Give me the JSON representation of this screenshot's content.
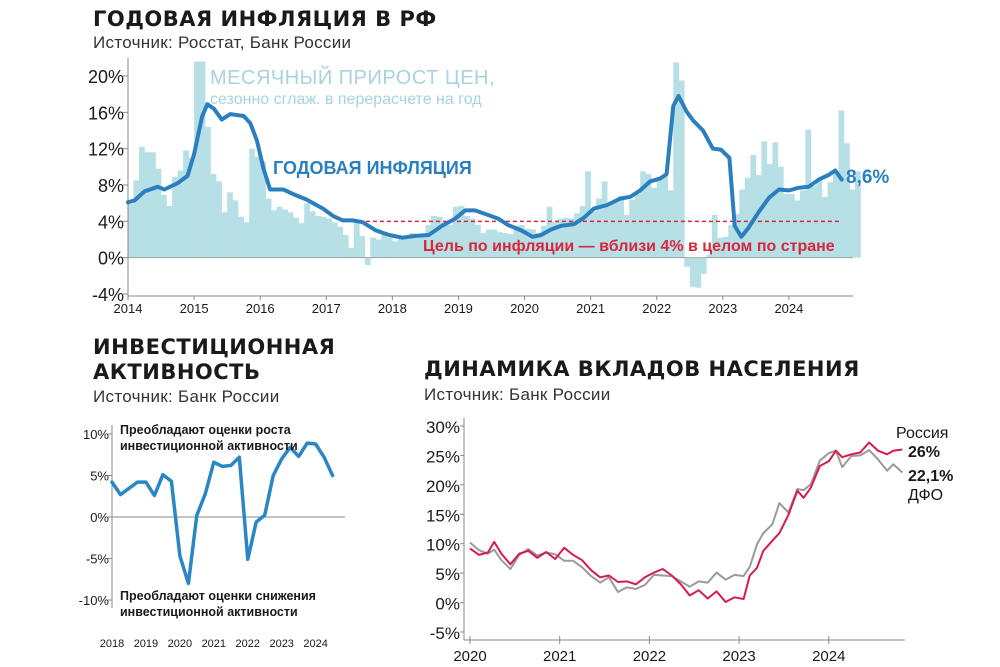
{
  "colors": {
    "bars": "#b7dfe6",
    "bars_label": "#a6d3dc",
    "inflation_line": "#2b7fbf",
    "target": "#d8263b",
    "grid": "#aaaaaa",
    "russia": "#d81b4a",
    "dfo": "#9a9a9a",
    "invest": "#2b86c5"
  },
  "chart_data": [
    {
      "type": "bar+line",
      "title": "ГОДОВАЯ ИНФЛЯЦИЯ В РФ",
      "subtitle": "Источник: Росстат, Банк России",
      "ylim": [
        -4,
        22
      ],
      "yticks": [
        "-4%",
        "0%",
        "4%",
        "8%",
        "12%",
        "16%",
        "20%"
      ],
      "ytick_values": [
        -4,
        0,
        4,
        8,
        12,
        16,
        20
      ],
      "xticks": [
        "2014",
        "2015",
        "2016",
        "2017",
        "2018",
        "2019",
        "2020",
        "2021",
        "2022",
        "2023",
        "2024"
      ],
      "xlim": [
        2014.0,
        2024.95
      ],
      "bar_series_label": "МЕСЯЧНЫЙ ПРИРОСТ ЦЕН,",
      "bar_series_label_2": "сезонно сглаж. в перерасчете на год",
      "line_series_label": "ГОДОВАЯ ИНФЛЯЦИЯ",
      "last_value_label": "8,6%",
      "target_value": 4,
      "target_label": "Цель по инфляции — вблизи 4% в целом по стране",
      "bars_monthly_start": 2014.0,
      "bars_monthly": [
        5.9,
        8.5,
        12.2,
        11.6,
        11.6,
        9.8,
        6.9,
        5.7,
        8.9,
        9.6,
        11.8,
        11.0,
        21.6,
        21.6,
        14.4,
        9.2,
        8.4,
        5.0,
        7.2,
        6.3,
        4.5,
        3.9,
        12.0,
        11.1,
        10.6,
        6.5,
        5.2,
        5.6,
        5.3,
        5.0,
        4.4,
        3.8,
        6.0,
        5.1,
        4.6,
        4.5,
        4.3,
        3.9,
        3.4,
        2.5,
        1.1,
        4.1,
        2.4,
        -0.8,
        2.2,
        2.0,
        2.7,
        2.2,
        1.8,
        2.1,
        2.1,
        2.7,
        2.6,
        2.4,
        3.6,
        4.6,
        4.5,
        3.6,
        3.6,
        5.6,
        5.7,
        4.6,
        4.3,
        3.6,
        2.7,
        3.1,
        3.1,
        2.8,
        2.7,
        2.6,
        3.5,
        3.6,
        3.2,
        3.1,
        2.7,
        3.5,
        5.6,
        3.9,
        4.3,
        4.4,
        4.3,
        4.9,
        5.7,
        9.5,
        5.1,
        6.5,
        8.4,
        6.0,
        6.1,
        6.8,
        4.7,
        6.4,
        7.0,
        9.5,
        9.2,
        7.7,
        8.7,
        9.0,
        7.4,
        21.5,
        19.5,
        -1.0,
        -3.2,
        -3.3,
        -1.8,
        0.3,
        4.7,
        2.2,
        2.3,
        3.6,
        4.8,
        7.5,
        8.8,
        11.3,
        9.1,
        12.8,
        10.3,
        12.7,
        10.0,
        7.0,
        7.0,
        6.3,
        7.4,
        14.1,
        7.9,
        8.5,
        6.7,
        8.3,
        9.3,
        16.2,
        12.6,
        7.5,
        9.5
      ],
      "line_points_note": "annual inflation values",
      "line": [
        [
          2014.0,
          6.1
        ],
        [
          2014.1,
          6.3
        ],
        [
          2014.25,
          7.3
        ],
        [
          2014.45,
          7.8
        ],
        [
          2014.55,
          7.5
        ],
        [
          2014.75,
          8.2
        ],
        [
          2014.9,
          9.0
        ],
        [
          2015.0,
          11.4
        ],
        [
          2015.12,
          15.5
        ],
        [
          2015.2,
          16.9
        ],
        [
          2015.3,
          16.4
        ],
        [
          2015.42,
          15.2
        ],
        [
          2015.55,
          15.8
        ],
        [
          2015.75,
          15.6
        ],
        [
          2015.85,
          14.8
        ],
        [
          2015.95,
          12.9
        ],
        [
          2016.05,
          9.8
        ],
        [
          2016.15,
          7.5
        ],
        [
          2016.35,
          7.5
        ],
        [
          2016.5,
          7.0
        ],
        [
          2016.7,
          6.4
        ],
        [
          2016.95,
          5.4
        ],
        [
          2017.1,
          4.6
        ],
        [
          2017.25,
          4.1
        ],
        [
          2017.4,
          4.1
        ],
        [
          2017.55,
          3.9
        ],
        [
          2017.75,
          3.0
        ],
        [
          2017.95,
          2.5
        ],
        [
          2018.15,
          2.2
        ],
        [
          2018.35,
          2.4
        ],
        [
          2018.55,
          2.5
        ],
        [
          2018.75,
          3.5
        ],
        [
          2018.95,
          4.3
        ],
        [
          2019.1,
          5.2
        ],
        [
          2019.25,
          5.2
        ],
        [
          2019.45,
          4.7
        ],
        [
          2019.6,
          4.3
        ],
        [
          2019.75,
          3.6
        ],
        [
          2019.95,
          3.0
        ],
        [
          2020.12,
          2.3
        ],
        [
          2020.25,
          2.5
        ],
        [
          2020.4,
          3.1
        ],
        [
          2020.55,
          3.5
        ],
        [
          2020.75,
          3.7
        ],
        [
          2020.9,
          4.4
        ],
        [
          2021.05,
          5.4
        ],
        [
          2021.25,
          5.8
        ],
        [
          2021.45,
          6.5
        ],
        [
          2021.6,
          6.7
        ],
        [
          2021.75,
          7.4
        ],
        [
          2021.9,
          8.4
        ],
        [
          2022.05,
          8.7
        ],
        [
          2022.15,
          9.2
        ],
        [
          2022.25,
          16.7
        ],
        [
          2022.33,
          17.8
        ],
        [
          2022.45,
          16.1
        ],
        [
          2022.55,
          15.1
        ],
        [
          2022.7,
          14.0
        ],
        [
          2022.85,
          12.0
        ],
        [
          2022.97,
          11.9
        ],
        [
          2023.1,
          11.0
        ],
        [
          2023.18,
          3.5
        ],
        [
          2023.28,
          2.3
        ],
        [
          2023.38,
          3.2
        ],
        [
          2023.55,
          5.1
        ],
        [
          2023.7,
          6.6
        ],
        [
          2023.85,
          7.5
        ],
        [
          2024.0,
          7.4
        ],
        [
          2024.15,
          7.7
        ],
        [
          2024.3,
          7.8
        ],
        [
          2024.45,
          8.6
        ],
        [
          2024.6,
          9.1
        ],
        [
          2024.7,
          9.6
        ],
        [
          2024.8,
          8.6
        ]
      ]
    },
    {
      "type": "line",
      "title_line1": "ИНВЕСТИЦИОННАЯ",
      "title_line2": "АКТИВНОСТЬ",
      "subtitle": "Источник: Банк России",
      "ylim": [
        -10.5,
        10.5
      ],
      "yticks": [
        "10%",
        "5%",
        "0%",
        "-5%",
        "-10%"
      ],
      "ytick_values": [
        10,
        5,
        0,
        -5,
        -10
      ],
      "xticks": [
        "2018",
        "2019",
        "2020",
        "2021",
        "2022",
        "2023",
        "2024"
      ],
      "xlim": [
        2018.0,
        2024.65
      ],
      "annotation_top_1": "Преобладают оценки роста",
      "annotation_top_2": "инвестиционной активности",
      "annotation_bottom_1": "Преобладают оценки снижения",
      "annotation_bottom_2": "инвестиционной активности",
      "series": [
        [
          2018.0,
          4.2
        ],
        [
          2018.25,
          2.7
        ],
        [
          2018.75,
          4.2
        ],
        [
          2019.0,
          4.2
        ],
        [
          2019.25,
          2.6
        ],
        [
          2019.5,
          5.1
        ],
        [
          2019.75,
          4.3
        ],
        [
          2020.0,
          -4.7
        ],
        [
          2020.25,
          -8.0
        ],
        [
          2020.5,
          0.2
        ],
        [
          2020.75,
          2.8
        ],
        [
          2021.0,
          6.6
        ],
        [
          2021.25,
          6.1
        ],
        [
          2021.5,
          6.2
        ],
        [
          2021.75,
          7.2
        ],
        [
          2022.0,
          -5.1
        ],
        [
          2022.25,
          -0.6
        ],
        [
          2022.5,
          0.2
        ],
        [
          2022.75,
          5.0
        ],
        [
          2023.0,
          7.0
        ],
        [
          2023.25,
          8.4
        ],
        [
          2023.5,
          7.3
        ],
        [
          2023.75,
          8.9
        ],
        [
          2024.0,
          8.8
        ],
        [
          2024.25,
          7.2
        ],
        [
          2024.5,
          5.0
        ]
      ]
    },
    {
      "type": "line",
      "title": "ДИНАМИКА ВКЛАДОВ НАСЕЛЕНИЯ",
      "subtitle": "Источник: Банк России",
      "ylim": [
        -5,
        30
      ],
      "yticks": [
        "30%",
        "25%",
        "20%",
        "15%",
        "10%",
        "5%",
        "0%",
        "-5%"
      ],
      "ytick_values": [
        30,
        25,
        20,
        15,
        10,
        5,
        0,
        -5
      ],
      "xticks": [
        "2020",
        "2021",
        "2022",
        "2023",
        "2024"
      ],
      "xlim": [
        2019.97,
        2024.85
      ],
      "series": [
        {
          "name": "Россия",
          "end_label": "26%",
          "values": [
            [
              2020.0,
              9.2
            ],
            [
              2020.1,
              8.1
            ],
            [
              2020.2,
              8.5
            ],
            [
              2020.27,
              10.3
            ],
            [
              2020.35,
              8.3
            ],
            [
              2020.45,
              6.5
            ],
            [
              2020.55,
              8.3
            ],
            [
              2020.65,
              8.8
            ],
            [
              2020.75,
              7.6
            ],
            [
              2020.85,
              8.6
            ],
            [
              2020.95,
              7.4
            ],
            [
              2021.05,
              9.3
            ],
            [
              2021.15,
              8.1
            ],
            [
              2021.25,
              7.2
            ],
            [
              2021.35,
              5.5
            ],
            [
              2021.45,
              4.3
            ],
            [
              2021.55,
              4.6
            ],
            [
              2021.65,
              3.5
            ],
            [
              2021.75,
              3.6
            ],
            [
              2021.85,
              3.1
            ],
            [
              2021.95,
              4.3
            ],
            [
              2022.05,
              5.1
            ],
            [
              2022.15,
              5.7
            ],
            [
              2022.25,
              4.6
            ],
            [
              2022.35,
              3.1
            ],
            [
              2022.45,
              1.2
            ],
            [
              2022.55,
              2.1
            ],
            [
              2022.65,
              0.7
            ],
            [
              2022.75,
              1.9
            ],
            [
              2022.85,
              0.1
            ],
            [
              2022.95,
              0.9
            ],
            [
              2023.05,
              0.6
            ],
            [
              2023.12,
              4.6
            ],
            [
              2023.2,
              5.9
            ],
            [
              2023.27,
              8.8
            ],
            [
              2023.37,
              10.5
            ],
            [
              2023.45,
              11.8
            ],
            [
              2023.55,
              14.9
            ],
            [
              2023.65,
              19.0
            ],
            [
              2023.72,
              17.8
            ],
            [
              2023.8,
              19.5
            ],
            [
              2023.9,
              23.2
            ],
            [
              2024.0,
              24.0
            ],
            [
              2024.08,
              25.8
            ],
            [
              2024.15,
              24.7
            ],
            [
              2024.25,
              25.2
            ],
            [
              2024.35,
              25.5
            ],
            [
              2024.45,
              27.2
            ],
            [
              2024.55,
              25.8
            ],
            [
              2024.65,
              25.2
            ],
            [
              2024.72,
              25.8
            ],
            [
              2024.82,
              26.0
            ]
          ]
        },
        {
          "name": "ДФО",
          "end_label": "22,1%",
          "values": [
            [
              2020.0,
              10.2
            ],
            [
              2020.1,
              8.9
            ],
            [
              2020.2,
              8.3
            ],
            [
              2020.27,
              9.0
            ],
            [
              2020.35,
              7.2
            ],
            [
              2020.45,
              5.7
            ],
            [
              2020.55,
              8.1
            ],
            [
              2020.65,
              9.1
            ],
            [
              2020.75,
              8.0
            ],
            [
              2020.85,
              8.5
            ],
            [
              2020.95,
              8.2
            ],
            [
              2021.05,
              7.1
            ],
            [
              2021.15,
              7.1
            ],
            [
              2021.25,
              6.0
            ],
            [
              2021.35,
              4.5
            ],
            [
              2021.45,
              3.4
            ],
            [
              2021.55,
              4.3
            ],
            [
              2021.65,
              1.8
            ],
            [
              2021.75,
              2.6
            ],
            [
              2021.85,
              2.3
            ],
            [
              2021.95,
              3.0
            ],
            [
              2022.05,
              4.7
            ],
            [
              2022.15,
              4.6
            ],
            [
              2022.25,
              4.5
            ],
            [
              2022.35,
              3.6
            ],
            [
              2022.45,
              2.7
            ],
            [
              2022.55,
              3.6
            ],
            [
              2022.65,
              3.4
            ],
            [
              2022.75,
              5.1
            ],
            [
              2022.85,
              3.9
            ],
            [
              2022.95,
              4.7
            ],
            [
              2023.05,
              4.5
            ],
            [
              2023.12,
              6.1
            ],
            [
              2023.2,
              9.9
            ],
            [
              2023.27,
              11.8
            ],
            [
              2023.37,
              13.3
            ],
            [
              2023.45,
              16.9
            ],
            [
              2023.55,
              15.3
            ],
            [
              2023.65,
              19.3
            ],
            [
              2023.72,
              19.1
            ],
            [
              2023.8,
              20.1
            ],
            [
              2023.9,
              24.1
            ],
            [
              2024.0,
              25.4
            ],
            [
              2024.08,
              25.8
            ],
            [
              2024.15,
              23.0
            ],
            [
              2024.25,
              24.9
            ],
            [
              2024.35,
              25.0
            ],
            [
              2024.45,
              25.9
            ],
            [
              2024.55,
              24.3
            ],
            [
              2024.65,
              22.4
            ],
            [
              2024.72,
              23.5
            ],
            [
              2024.82,
              22.1
            ]
          ]
        }
      ]
    }
  ]
}
